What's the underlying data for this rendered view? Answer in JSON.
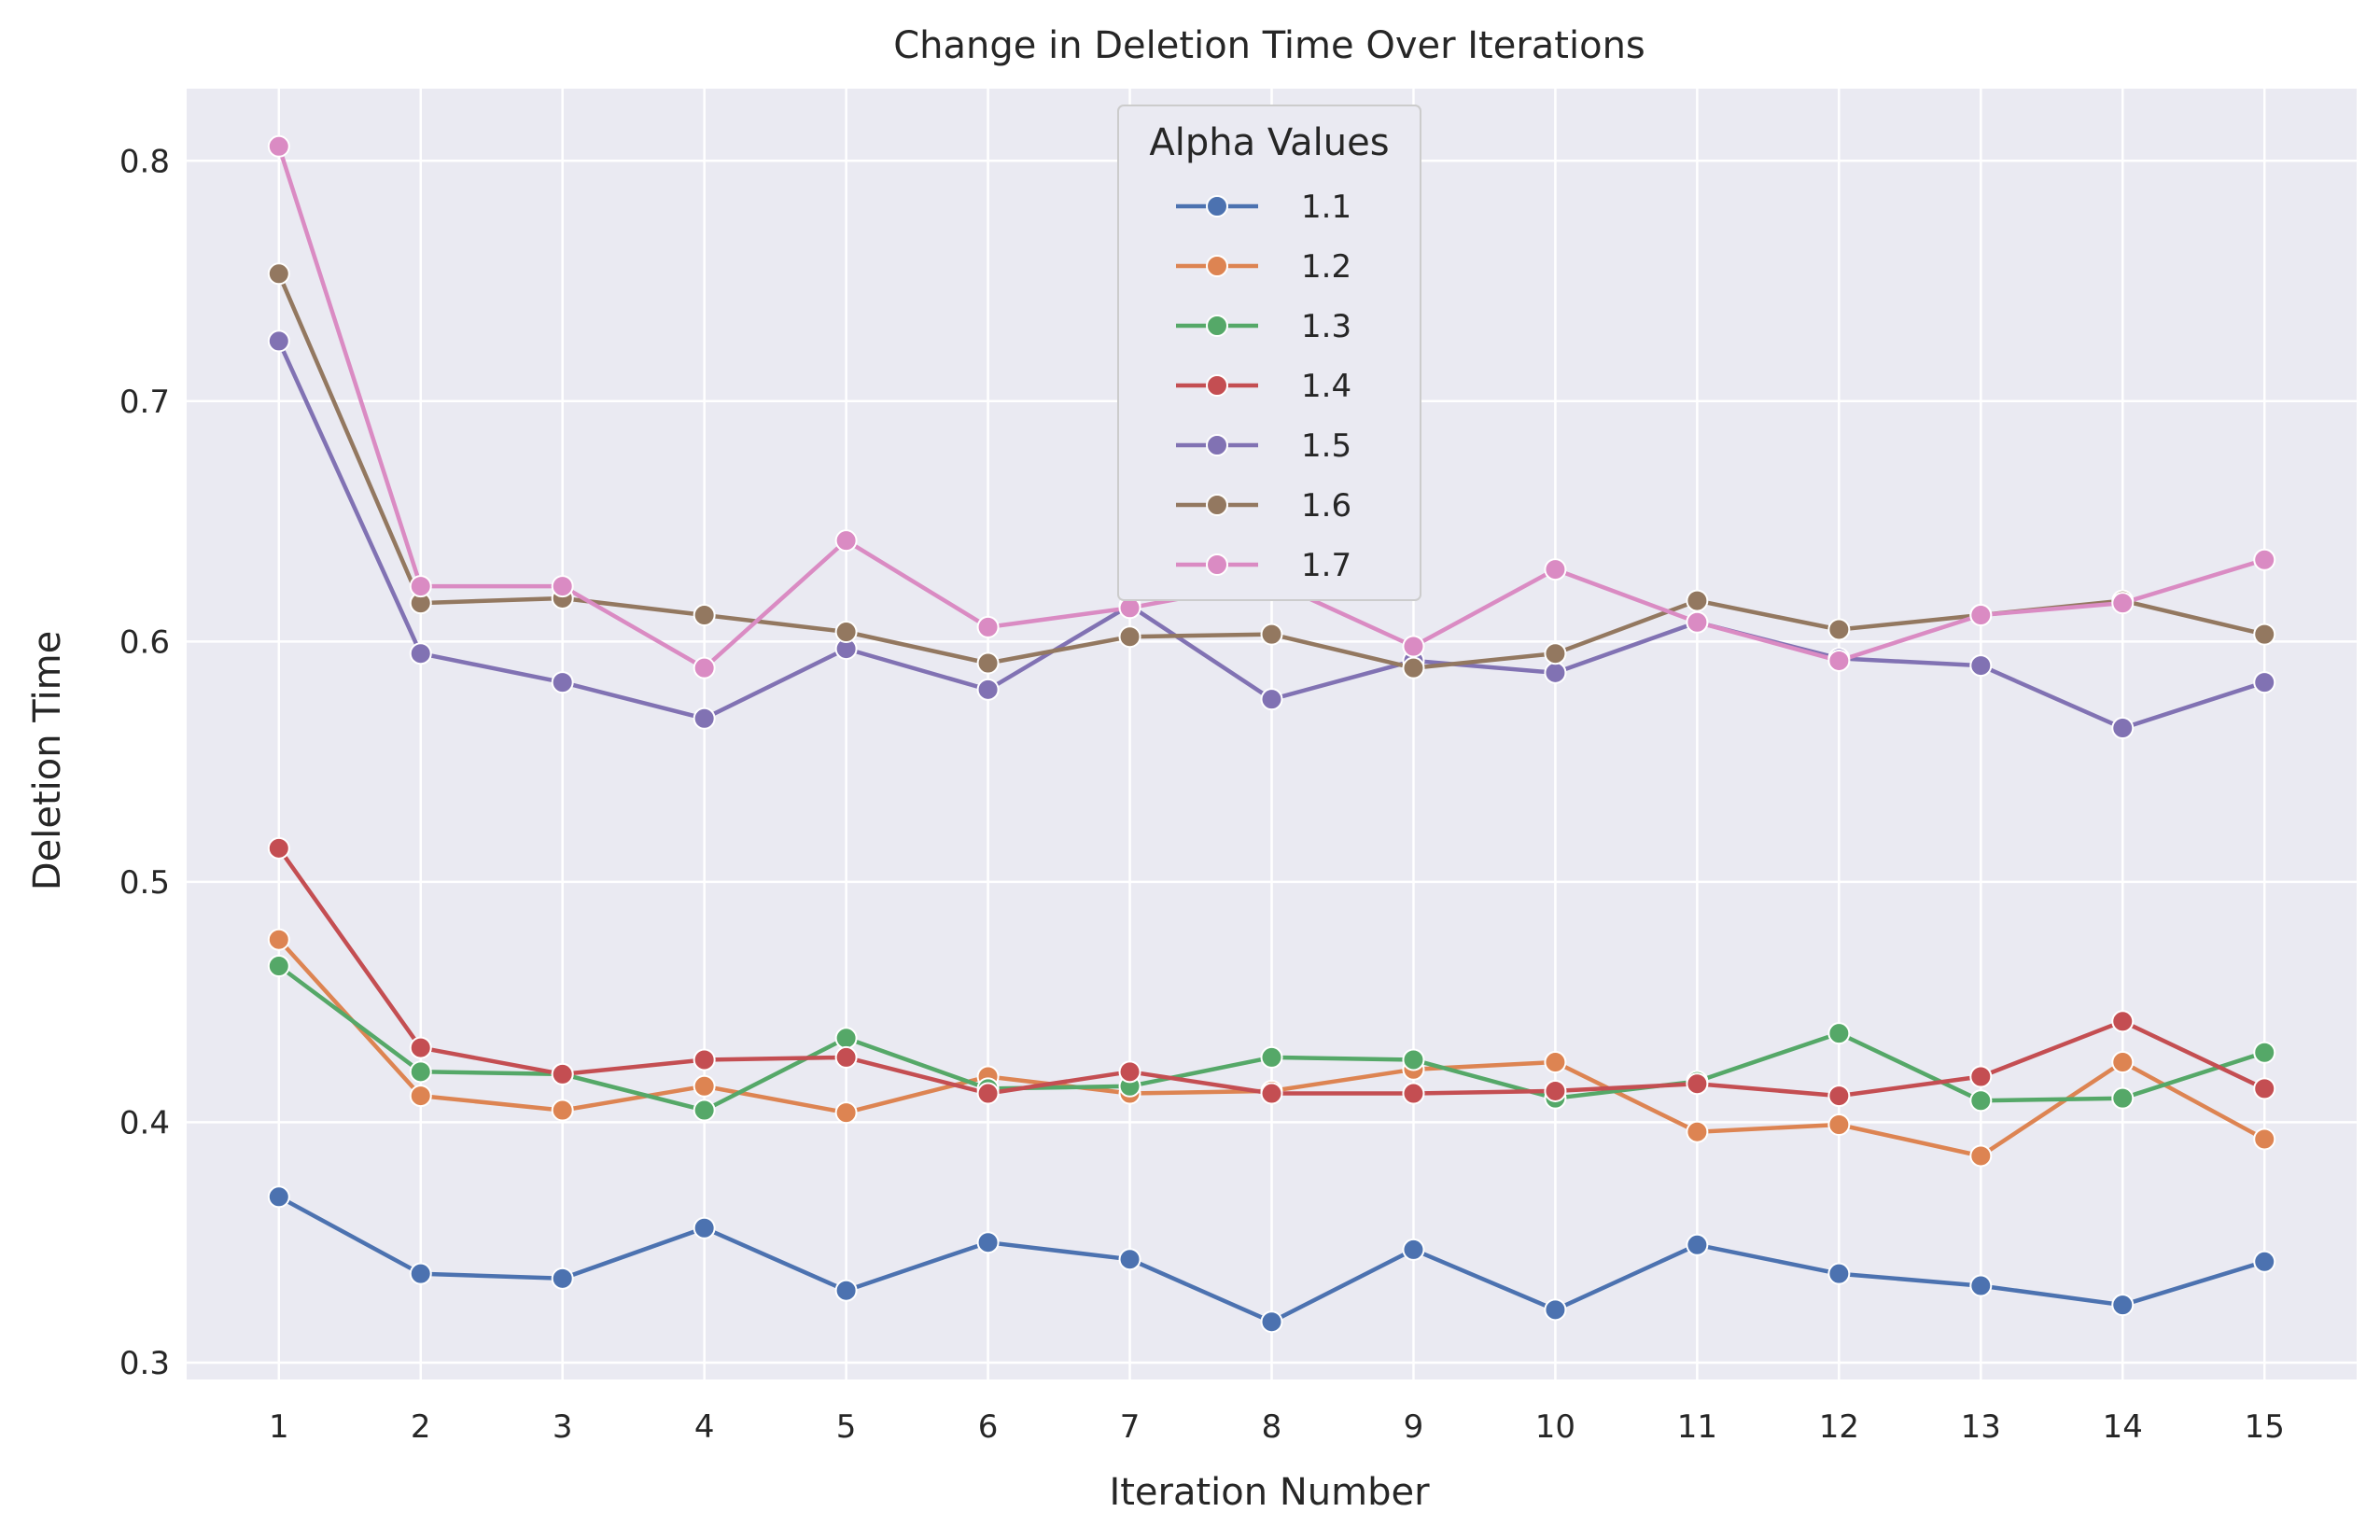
{
  "chart_data": {
    "type": "line",
    "title": "Change in Deletion Time Over Iterations",
    "xlabel": "Iteration Number",
    "ylabel": "Deletion Time",
    "x": [
      1,
      2,
      3,
      4,
      5,
      6,
      7,
      8,
      9,
      10,
      11,
      12,
      13,
      14,
      15
    ],
    "xlim": [
      0.35,
      15.65
    ],
    "ylim": [
      0.293,
      0.83
    ],
    "yticks": [
      0.3,
      0.4,
      0.5,
      0.6,
      0.7,
      0.8
    ],
    "ytick_labels": [
      "0.3",
      "0.4",
      "0.5",
      "0.6",
      "0.7",
      "0.8"
    ],
    "xtick_labels": [
      "1",
      "2",
      "3",
      "4",
      "5",
      "6",
      "7",
      "8",
      "9",
      "10",
      "11",
      "12",
      "13",
      "14",
      "15"
    ],
    "grid": true,
    "legend": {
      "title": "Alpha Values",
      "placement": "upper-center"
    },
    "series": [
      {
        "name": "1.1",
        "color": "#4c72b0",
        "values": [
          0.369,
          0.337,
          0.335,
          0.356,
          0.33,
          0.35,
          0.343,
          0.317,
          0.347,
          0.322,
          0.349,
          0.337,
          0.332,
          0.324,
          0.342
        ]
      },
      {
        "name": "1.2",
        "color": "#dd8452",
        "values": [
          0.476,
          0.411,
          0.405,
          0.415,
          0.404,
          0.419,
          0.412,
          0.413,
          0.422,
          0.425,
          0.396,
          0.399,
          0.386,
          0.425,
          0.393
        ]
      },
      {
        "name": "1.3",
        "color": "#55a868",
        "values": [
          0.465,
          0.421,
          0.42,
          0.405,
          0.435,
          0.414,
          0.415,
          0.427,
          0.426,
          0.41,
          0.417,
          0.437,
          0.409,
          0.41,
          0.429
        ]
      },
      {
        "name": "1.4",
        "color": "#c44e52",
        "values": [
          0.514,
          0.431,
          0.42,
          0.426,
          0.427,
          0.412,
          0.421,
          0.412,
          0.412,
          0.413,
          0.416,
          0.411,
          0.419,
          0.442,
          0.414
        ]
      },
      {
        "name": "1.5",
        "color": "#8172b3",
        "values": [
          0.725,
          0.595,
          0.583,
          0.568,
          0.597,
          0.58,
          0.615,
          0.576,
          0.592,
          0.587,
          0.608,
          0.593,
          0.59,
          0.564,
          0.583
        ]
      },
      {
        "name": "1.6",
        "color": "#937860",
        "values": [
          0.753,
          0.616,
          0.618,
          0.611,
          0.604,
          0.591,
          0.602,
          0.603,
          0.589,
          0.595,
          0.617,
          0.605,
          0.611,
          0.617,
          0.603
        ]
      },
      {
        "name": "1.7",
        "color": "#da8bc3",
        "values": [
          0.806,
          0.623,
          0.623,
          0.589,
          0.642,
          0.606,
          0.614,
          0.625,
          0.598,
          0.63,
          0.608,
          0.592,
          0.611,
          0.616,
          0.634
        ]
      }
    ]
  }
}
